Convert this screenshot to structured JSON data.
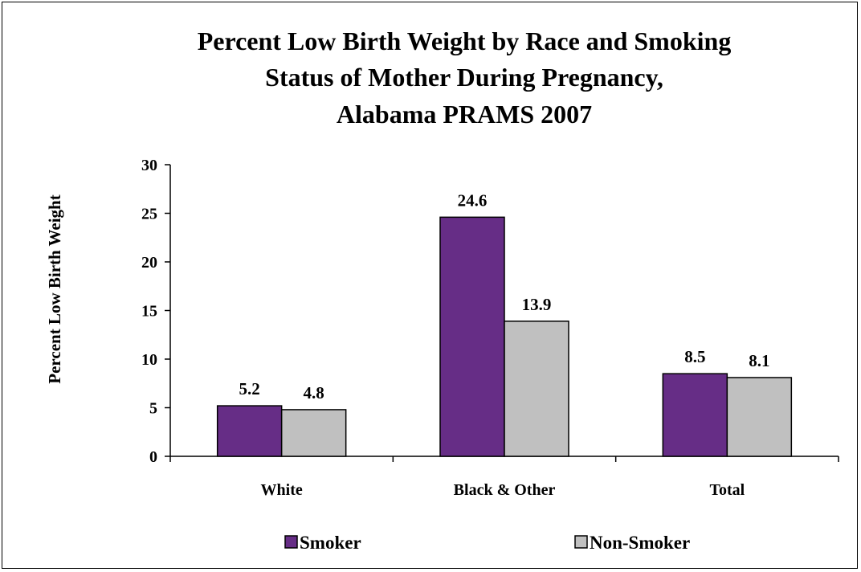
{
  "chart_data": {
    "type": "bar",
    "title_lines": [
      "Percent Low Birth Weight by Race and Smoking",
      "Status of Mother During Pregnancy,",
      "Alabama PRAMS 2007"
    ],
    "xlabel": "",
    "ylabel": "Percent Low Birth Weight",
    "categories": [
      "White",
      "Black & Other",
      "Total"
    ],
    "series": [
      {
        "name": "Smoker",
        "values": [
          5.2,
          24.6,
          8.5
        ],
        "labels": [
          "5.2",
          "24.6",
          "8.5"
        ],
        "color": "#662d86"
      },
      {
        "name": "Non-Smoker",
        "values": [
          4.8,
          13.9,
          8.1
        ],
        "labels": [
          "4.8",
          "13.9",
          "8.1"
        ],
        "color": "#c0c0c0"
      }
    ],
    "ylim": [
      0,
      30
    ],
    "yticks": [
      "0",
      "5",
      "10",
      "15",
      "20",
      "25",
      "30"
    ],
    "grid": false,
    "legend": "bottom"
  }
}
